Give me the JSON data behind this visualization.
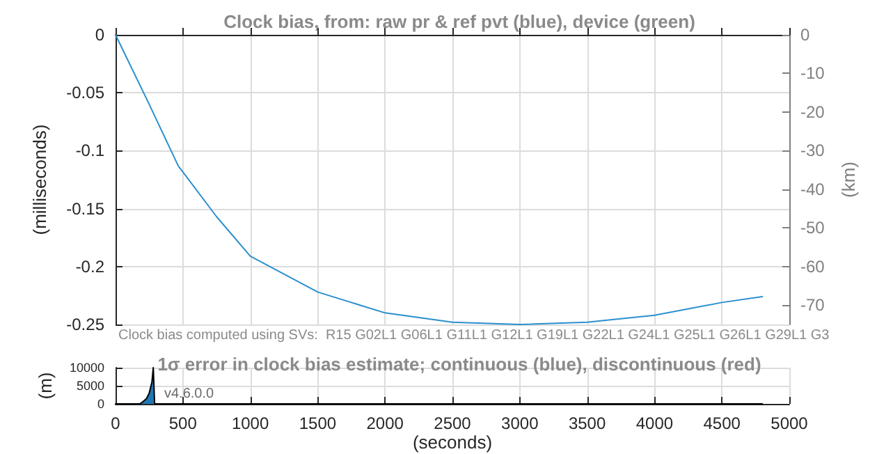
{
  "chart_data": [
    {
      "type": "line",
      "title": "Clock bias, from: raw pr & ref pvt (blue), device (green)",
      "ylabel": "(milliseconds)",
      "y2label": "(km)",
      "annotations": [
        "Clock bias computed using SVs:  R15 G02L1 G06L1 G11L1 G12L1 G19L1 G22L1 G24L1 G25L1 G26L1 G29L1 G3"
      ],
      "x": [
        0,
        250,
        465,
        750,
        1000,
        1500,
        2000,
        2500,
        3000,
        3500,
        4000,
        4500,
        4800
      ],
      "series": [
        {
          "color": "#2a8fcf",
          "values": [
            0,
            -0.06,
            -0.113,
            -0.157,
            -0.191,
            -0.222,
            -0.24,
            -0.248,
            -0.25,
            -0.248,
            -0.242,
            -0.231,
            -0.226
          ]
        }
      ],
      "xlim": [
        0,
        5000
      ],
      "xticks": [
        0,
        500,
        1000,
        1500,
        2000,
        2500,
        3000,
        3500,
        4000,
        4500,
        5000
      ],
      "ylim": [
        -0.25,
        0
      ],
      "yticks": [
        -0.25,
        -0.2,
        -0.15,
        -0.1,
        -0.05,
        0
      ],
      "y2lim": [
        -75,
        0
      ],
      "y2ticks": [
        -70,
        -60,
        -50,
        -40,
        -30,
        -20,
        -10,
        0
      ],
      "tick_labels": "y",
      "grid": true,
      "marker": "none",
      "line_style": "solid"
    },
    {
      "type": "area",
      "title": "1σ error in clock bias estimate; continuous (blue), discontinuous (red)",
      "xlabel": "(seconds)",
      "ylabel": "(m)",
      "annotations": [
        "v4.6.0.0"
      ],
      "x": [
        0,
        180,
        200,
        230,
        250,
        270,
        280,
        290,
        500,
        1000,
        2000,
        3000,
        4000,
        4800
      ],
      "series": [
        {
          "color": "#1f77b4",
          "values": [
            0,
            0,
            500,
            1500,
            3000,
            6000,
            10000,
            0,
            0,
            0,
            0,
            0,
            0,
            0
          ]
        }
      ],
      "xlim": [
        0,
        5000
      ],
      "xticks": [
        0,
        500,
        1000,
        1500,
        2000,
        2500,
        3000,
        3500,
        4000,
        4500,
        5000
      ],
      "ylim": [
        0,
        10000
      ],
      "yticks": [
        0,
        5000,
        10000
      ],
      "grid": true,
      "marker": "none",
      "line_style": "solid"
    }
  ]
}
